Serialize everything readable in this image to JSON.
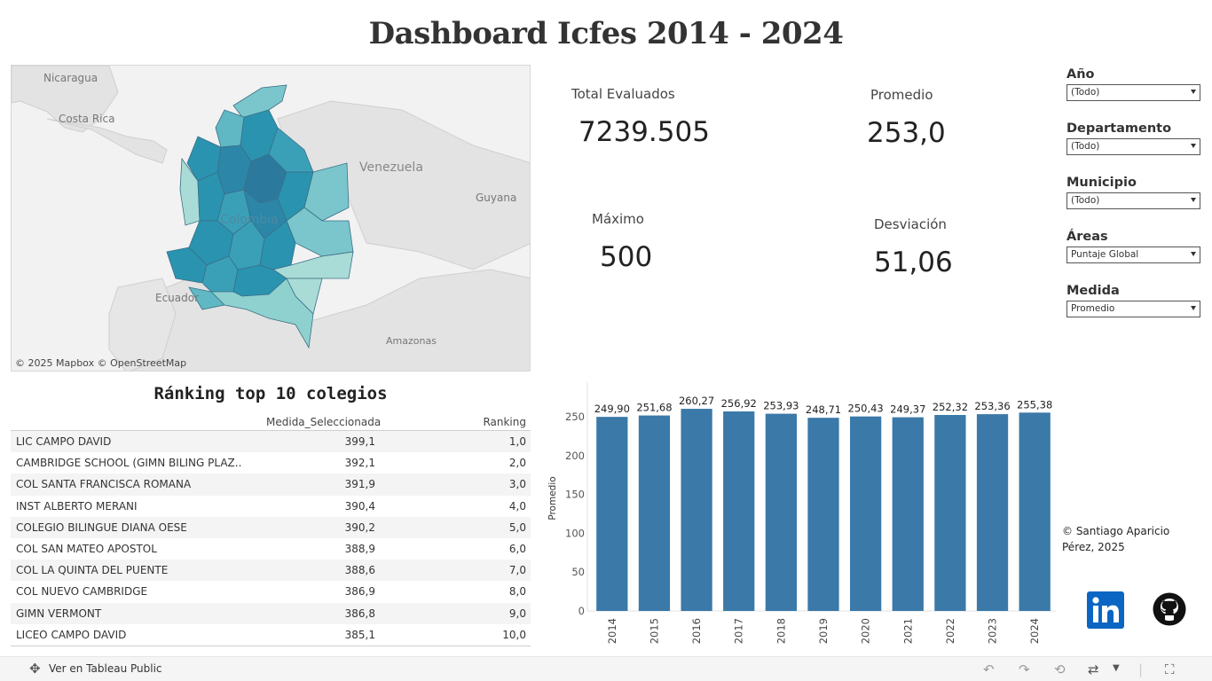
{
  "title": "Dashboard Icfes 2014 - 2024",
  "map": {
    "labels": {
      "nicaragua": "Nicaragua",
      "costa_rica": "Costa Rica",
      "venezuela": "Venezuela",
      "guyana": "Guyana",
      "colombia": "Colombia",
      "ecuador": "Ecuador",
      "amazonas": "Amazonas"
    },
    "attribution": "© 2025 Mapbox  © OpenStreetMap",
    "colors": {
      "light": "#a9dcd6",
      "mid": "#5fb8c4",
      "dark": "#2a93b0",
      "darkest": "#2b7a9e",
      "land": "#e3e3e3",
      "water": "#f2f2f2"
    }
  },
  "kpis": {
    "total_label": "Total Evaluados",
    "total_value": "7239.505",
    "promedio_label": "Promedio",
    "promedio_value": "253,0",
    "maximo_label": "Máximo",
    "maximo_value": "500",
    "desviacion_label": "Desviación",
    "desviacion_value": "51,06"
  },
  "filters": [
    {
      "label": "Año",
      "value": "(Todo)"
    },
    {
      "label": "Departamento",
      "value": "(Todo)"
    },
    {
      "label": "Municipio",
      "value": "(Todo)"
    },
    {
      "label": "Áreas",
      "value": "Puntaje Global"
    },
    {
      "label": "Medida",
      "value": "Promedio"
    }
  ],
  "ranking": {
    "title": "Ránking top 10 colegios",
    "col_measure": "Medida_Seleccionada",
    "col_rank": "Ranking",
    "rows": [
      {
        "name": "LIC CAMPO DAVID",
        "value": "399,1",
        "rank": "1,0"
      },
      {
        "name": "CAMBRIDGE SCHOOL (GIMN BILING PLAZ..",
        "value": "392,1",
        "rank": "2,0"
      },
      {
        "name": "COL SANTA FRANCISCA ROMANA",
        "value": "391,9",
        "rank": "3,0"
      },
      {
        "name": "INST ALBERTO MERANI",
        "value": "390,4",
        "rank": "4,0"
      },
      {
        "name": "COLEGIO BILINGUE DIANA OESE",
        "value": "390,2",
        "rank": "5,0"
      },
      {
        "name": "COL SAN MATEO APOSTOL",
        "value": "388,9",
        "rank": "6,0"
      },
      {
        "name": "COL LA QUINTA DEL PUENTE",
        "value": "388,6",
        "rank": "7,0"
      },
      {
        "name": "COL NUEVO CAMBRIDGE",
        "value": "386,9",
        "rank": "8,0"
      },
      {
        "name": "GIMN VERMONT",
        "value": "386,8",
        "rank": "9,0"
      },
      {
        "name": "LICEO CAMPO DAVID",
        "value": "385,1",
        "rank": "10,0"
      }
    ]
  },
  "chart_data": {
    "type": "bar",
    "categories": [
      "2014",
      "2015",
      "2016",
      "2017",
      "2018",
      "2019",
      "2020",
      "2021",
      "2022",
      "2023",
      "2024"
    ],
    "values": [
      249.9,
      251.68,
      260.27,
      256.92,
      253.93,
      248.71,
      250.43,
      249.37,
      252.32,
      253.36,
      255.38
    ],
    "data_labels": [
      "249,90",
      "251,68",
      "260,27",
      "256,92",
      "253,93",
      "248,71",
      "250,43",
      "249,37",
      "252,32",
      "253,36",
      "255,38"
    ],
    "ylabel": "Promedio",
    "xlabel": "",
    "yticks": [
      0,
      50,
      100,
      150,
      200,
      250
    ],
    "ylim": [
      0,
      290
    ],
    "bar_color": "#3a79a8",
    "grid": false
  },
  "credit": {
    "line1": "© Santiago Aparicio",
    "line2": "Pérez, 2025"
  },
  "icons": {
    "linkedin": "linkedin-icon",
    "github": "github-icon"
  },
  "footer": {
    "tableau_label": "Ver en Tableau Public"
  }
}
